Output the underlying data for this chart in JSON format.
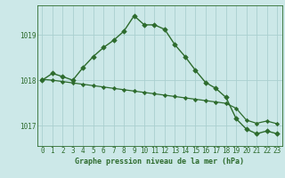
{
  "title": "Graphe pression niveau de la mer (hPa)",
  "bg_color": "#cce8e8",
  "grid_color": "#aacfcf",
  "line_color": "#2d6b2d",
  "x_labels": [
    "0",
    "1",
    "2",
    "3",
    "4",
    "5",
    "6",
    "7",
    "8",
    "9",
    "10",
    "11",
    "12",
    "13",
    "14",
    "15",
    "16",
    "17",
    "18",
    "19",
    "20",
    "21",
    "22",
    "23"
  ],
  "curve1_x": [
    0,
    1,
    2,
    3,
    4,
    5,
    6,
    7,
    8,
    9,
    10,
    11,
    12,
    13,
    14,
    15,
    16,
    17,
    18,
    19,
    20,
    21,
    22,
    23
  ],
  "curve1_y": [
    1018.0,
    1018.15,
    1018.08,
    1018.0,
    1018.28,
    1018.52,
    1018.72,
    1018.88,
    1019.08,
    1019.42,
    1019.22,
    1019.22,
    1019.12,
    1018.78,
    1018.52,
    1018.22,
    1017.95,
    1017.82,
    1017.62,
    1017.15,
    1016.92,
    1016.82,
    1016.88,
    1016.82
  ],
  "curve2_x": [
    0,
    1,
    2,
    3,
    4,
    5,
    6,
    7,
    8,
    9,
    10,
    11,
    12,
    13,
    14,
    15,
    16,
    17,
    18,
    19,
    20,
    21,
    22,
    23
  ],
  "curve2_y": [
    1018.02,
    1018.0,
    1017.97,
    1017.94,
    1017.91,
    1017.88,
    1017.85,
    1017.82,
    1017.79,
    1017.76,
    1017.73,
    1017.7,
    1017.67,
    1017.64,
    1017.61,
    1017.58,
    1017.55,
    1017.52,
    1017.49,
    1017.38,
    1017.12,
    1017.05,
    1017.1,
    1017.04
  ],
  "ylim_min": 1016.55,
  "ylim_max": 1019.65,
  "yticks": [
    1017,
    1018,
    1019
  ],
  "ylabel_fontsize": 5.5,
  "xlabel_fontsize": 5.5,
  "title_fontsize": 6.0
}
